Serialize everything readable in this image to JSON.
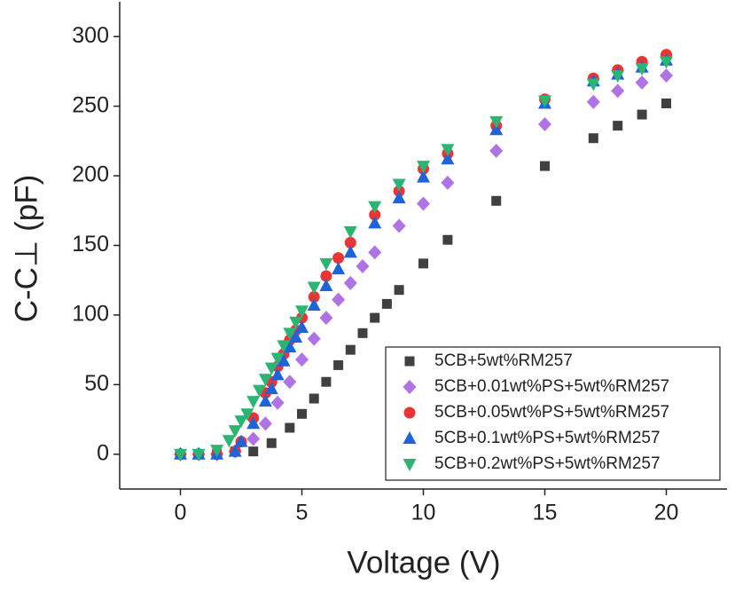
{
  "chart_data": {
    "type": "scatter",
    "xlabel": "Voltage (V)",
    "ylabel": "C-C⊥ (pF)",
    "xlim": [
      -2.5,
      22.5
    ],
    "ylim": [
      -25,
      325
    ],
    "xticks": [
      0,
      5,
      10,
      15,
      20
    ],
    "yticks": [
      0,
      50,
      100,
      150,
      200,
      250,
      300
    ],
    "legend": "lower right",
    "series": [
      {
        "name": "5CB+5wt%RM257",
        "color": "#404040",
        "marker": "square",
        "x": [
          0,
          0.75,
          1.5,
          2.25,
          3,
          3.75,
          4.5,
          5,
          5.5,
          6,
          6.5,
          7,
          7.5,
          8,
          8.5,
          9,
          10,
          11,
          13,
          15,
          17,
          18,
          19,
          20
        ],
        "values": [
          0,
          0,
          0,
          2,
          2,
          8,
          19,
          29,
          40,
          52,
          64,
          75,
          87,
          98,
          108,
          118,
          137,
          154,
          182,
          207,
          227,
          236,
          244,
          252
        ]
      },
      {
        "name": "5CB+0.01wt%PS+5wt%RM257",
        "color": "#b073e6",
        "marker": "diamond",
        "x": [
          0,
          0.75,
          1.5,
          2.25,
          3,
          3.5,
          4,
          4.5,
          5,
          5.5,
          6,
          6.5,
          7,
          7.5,
          8,
          9,
          10,
          11,
          13,
          15,
          17,
          18,
          19,
          20
        ],
        "values": [
          0,
          0,
          0,
          2,
          11,
          22,
          37,
          52,
          68,
          83,
          98,
          111,
          123,
          135,
          145,
          164,
          180,
          195,
          218,
          237,
          253,
          261,
          267,
          272
        ]
      },
      {
        "name": "5CB+0.05wt%PS+5wt%RM257",
        "color": "#ec3434",
        "marker": "circle",
        "x": [
          0,
          0.75,
          1.5,
          2.25,
          2.5,
          3,
          3.5,
          3.75,
          4,
          4.25,
          4.5,
          4.75,
          5,
          5.5,
          6,
          6.5,
          7,
          8,
          9,
          10,
          11,
          13,
          15,
          17,
          18,
          19,
          20
        ],
        "values": [
          0,
          0,
          0,
          2,
          9,
          26,
          44,
          52,
          63,
          72,
          82,
          89,
          98,
          113,
          128,
          141,
          152,
          172,
          189,
          205,
          216,
          236,
          255,
          270,
          276,
          282,
          287
        ]
      },
      {
        "name": "5CB+0.1wt%PS+5wt%RM257",
        "color": "#1f63d8",
        "marker": "triangle",
        "x": [
          0,
          0.75,
          1.5,
          2.25,
          2.5,
          3,
          3.5,
          3.75,
          4,
          4.25,
          4.5,
          4.75,
          5,
          5.5,
          6,
          6.5,
          7,
          8,
          9,
          10,
          11,
          13,
          15,
          17,
          18,
          19,
          20
        ],
        "values": [
          0,
          0,
          0,
          2,
          9,
          22,
          38,
          47,
          57,
          67,
          77,
          84,
          91,
          107,
          121,
          133,
          145,
          166,
          184,
          199,
          212,
          233,
          252,
          268,
          273,
          278,
          283
        ]
      },
      {
        "name": "5CB+0.2wt%PS+5wt%RM257",
        "color": "#2bb573",
        "marker": "triangle-down",
        "x": [
          0,
          0.75,
          1.5,
          2,
          2.25,
          2.5,
          2.75,
          3,
          3.25,
          3.5,
          3.75,
          4,
          4.25,
          4.5,
          4.75,
          5,
          5.5,
          6,
          7,
          8,
          9,
          10,
          11,
          13,
          15,
          17,
          18,
          19,
          20
        ],
        "values": [
          0,
          0,
          3,
          10,
          17,
          24,
          29,
          38,
          46,
          54,
          62,
          69,
          78,
          87,
          95,
          103,
          120,
          137,
          160,
          178,
          194,
          207,
          219,
          239,
          254,
          266,
          272,
          277,
          282
        ]
      }
    ]
  }
}
